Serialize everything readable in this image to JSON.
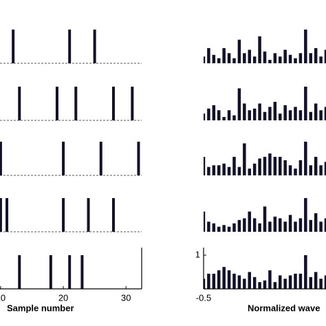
{
  "chart_data": [
    {
      "type": "stem",
      "x": [
        12,
        21,
        25
      ],
      "values": [
        1,
        1,
        1
      ],
      "xlim": [
        9.9,
        32.5
      ],
      "ylim": [
        0,
        1
      ],
      "color": "#11112a"
    },
    {
      "type": "stem",
      "x": [
        13,
        19,
        22,
        28,
        31
      ],
      "values": [
        1,
        1,
        1,
        1,
        1
      ],
      "xlim": [
        9.9,
        32.5
      ],
      "ylim": [
        0,
        1
      ],
      "color": "#11112a"
    },
    {
      "type": "stem",
      "x": [
        10,
        20,
        26,
        32
      ],
      "values": [
        1,
        1,
        1,
        1
      ],
      "xlim": [
        9.9,
        32.5
      ],
      "ylim": [
        0,
        1
      ],
      "color": "#11112a"
    },
    {
      "type": "stem",
      "x": [
        10,
        11,
        20,
        24,
        28
      ],
      "values": [
        1,
        1,
        1,
        1,
        1
      ],
      "xlim": [
        9.9,
        32.5
      ],
      "ylim": [
        0,
        1
      ],
      "color": "#11112a"
    },
    {
      "type": "stem",
      "x": [
        13,
        18,
        21,
        23
      ],
      "values": [
        1,
        1,
        1,
        1
      ],
      "xlim": [
        9.9,
        32.5
      ],
      "ylim": [
        0,
        1
      ],
      "color": "#11112a",
      "xticks": [
        10,
        20,
        30
      ],
      "xlabel": "Sample number"
    },
    {
      "type": "bar",
      "x": [
        -0.5,
        -0.475,
        -0.45,
        -0.425,
        -0.4,
        -0.375,
        -0.35,
        -0.325,
        -0.3,
        -0.275,
        -0.25,
        -0.225,
        -0.2,
        -0.175,
        -0.15,
        -0.125,
        -0.1,
        -0.075,
        -0.05,
        -0.025,
        0,
        0.025,
        0.05,
        0.075,
        0.1
      ],
      "values": [
        0.2,
        0.45,
        0.25,
        0.15,
        0.45,
        0.3,
        0.15,
        0.7,
        0.3,
        0.4,
        0.2,
        0.8,
        0.35,
        0.1,
        0.3,
        0.2,
        0.4,
        0.25,
        0.15,
        0.3,
        1,
        0.3,
        0.45,
        0.2,
        0.4
      ],
      "xlim": [
        -0.5,
        0.1
      ],
      "ylim": [
        0,
        1
      ],
      "color": "#11112a"
    },
    {
      "type": "bar",
      "x": [
        -0.5,
        -0.475,
        -0.45,
        -0.425,
        -0.4,
        -0.375,
        -0.35,
        -0.325,
        -0.3,
        -0.275,
        -0.25,
        -0.225,
        -0.2,
        -0.175,
        -0.15,
        -0.125,
        -0.1,
        -0.075,
        -0.05,
        -0.025,
        0,
        0.025,
        0.05,
        0.075,
        0.1
      ],
      "values": [
        0.2,
        0.35,
        0.45,
        0.3,
        0.1,
        0.3,
        0.15,
        0.95,
        0.5,
        0.3,
        0.35,
        0.5,
        0.25,
        0.4,
        0.55,
        0.2,
        0.45,
        0.3,
        0.4,
        0.3,
        1,
        0.25,
        0.5,
        0.3,
        0.4
      ],
      "xlim": [
        -0.5,
        0.1
      ],
      "ylim": [
        0,
        1
      ],
      "color": "#11112a"
    },
    {
      "type": "bar",
      "x": [
        -0.5,
        -0.475,
        -0.45,
        -0.425,
        -0.4,
        -0.375,
        -0.35,
        -0.325,
        -0.3,
        -0.275,
        -0.25,
        -0.225,
        -0.2,
        -0.175,
        -0.15,
        -0.125,
        -0.1,
        -0.075,
        -0.05,
        -0.025,
        0,
        0.025,
        0.05,
        0.075,
        0.1
      ],
      "values": [
        0.55,
        0.25,
        0.3,
        0.3,
        0.35,
        0.25,
        0.55,
        0.25,
        0.95,
        0.2,
        0.35,
        0.5,
        0.55,
        0.65,
        0.55,
        0.55,
        0.45,
        0.3,
        0.2,
        0.45,
        1,
        0.3,
        0.55,
        0.3,
        0.4
      ],
      "xlim": [
        -0.5,
        0.1
      ],
      "ylim": [
        0,
        1
      ],
      "color": "#11112a"
    },
    {
      "type": "bar",
      "x": [
        -0.5,
        -0.475,
        -0.45,
        -0.425,
        -0.4,
        -0.375,
        -0.35,
        -0.325,
        -0.3,
        -0.275,
        -0.25,
        -0.225,
        -0.2,
        -0.175,
        -0.15,
        -0.125,
        -0.1,
        -0.075,
        -0.05,
        -0.025,
        0,
        0.025,
        0.05,
        0.075,
        0.1
      ],
      "values": [
        0.6,
        0.3,
        0.25,
        0.15,
        0.2,
        0.15,
        0.25,
        0.35,
        0.4,
        0.6,
        0.4,
        0.25,
        0.75,
        0.3,
        0.45,
        0.4,
        0.3,
        0.5,
        0.3,
        0.4,
        1,
        0.35,
        0.55,
        0.3,
        0.4
      ],
      "xlim": [
        -0.5,
        0.1
      ],
      "ylim": [
        0,
        1
      ],
      "color": "#11112a"
    },
    {
      "type": "bar",
      "x": [
        -0.5,
        -0.475,
        -0.45,
        -0.425,
        -0.4,
        -0.375,
        -0.35,
        -0.325,
        -0.3,
        -0.275,
        -0.25,
        -0.225,
        -0.2,
        -0.175,
        -0.15,
        -0.125,
        -0.1,
        -0.075,
        -0.05,
        -0.025,
        0,
        0.025,
        0.05,
        0.075,
        0.1
      ],
      "values": [
        0.3,
        0.45,
        0.45,
        0.55,
        0.65,
        0.55,
        0.45,
        0.4,
        0.3,
        0.5,
        0.35,
        0.2,
        0.25,
        0.55,
        0.2,
        0.4,
        0.3,
        0.4,
        0.45,
        0.45,
        1,
        0.35,
        0.5,
        0.3,
        0.4
      ],
      "xlim": [
        -0.5,
        0.1
      ],
      "ylim": [
        0,
        1
      ],
      "yticks": [
        1
      ],
      "xticks": [
        -0.5
      ],
      "color": "#11112a",
      "xlabel": "Normalized wave"
    }
  ]
}
